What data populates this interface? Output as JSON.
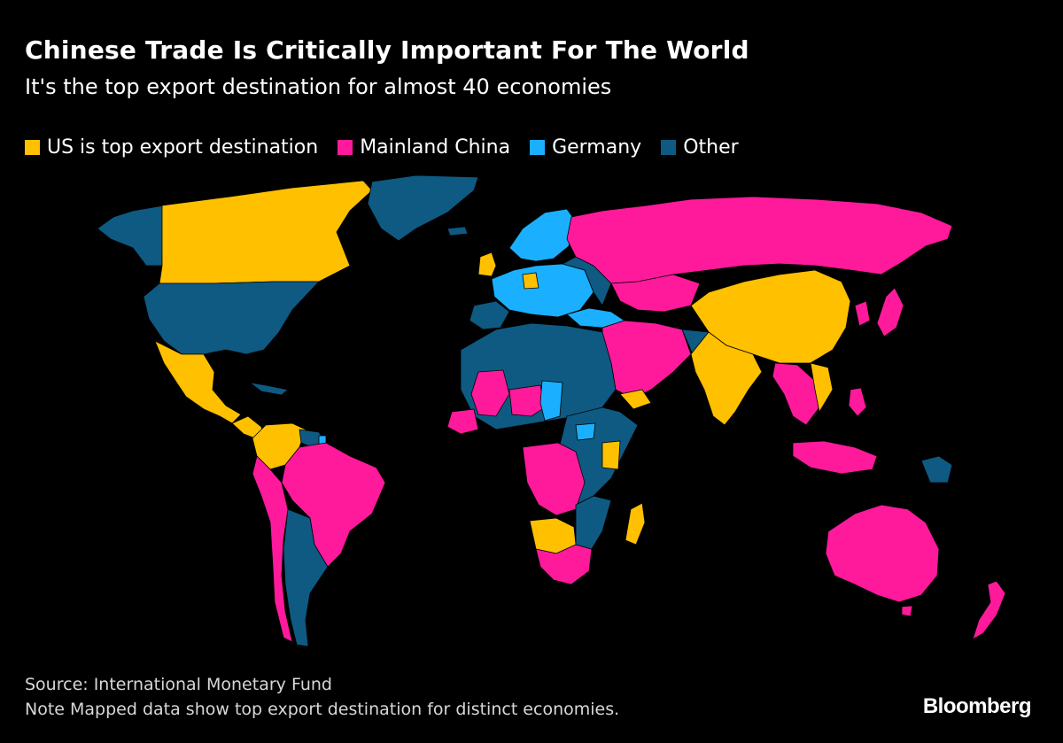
{
  "title": "Chinese Trade Is Critically Important For The World",
  "subtitle": "It's the top export destination for almost 40 economies",
  "legend": [
    {
      "label": "US is top export destination",
      "color": "#ffc000"
    },
    {
      "label": "Mainland China",
      "color": "#ff1a9c"
    },
    {
      "label": "Germany",
      "color": "#1ab0ff"
    },
    {
      "label": "Other",
      "color": "#0e5a82"
    }
  ],
  "colors": {
    "us": "#ffc000",
    "china": "#ff1a9c",
    "germany": "#1ab0ff",
    "other": "#0e5a82",
    "background": "#000000"
  },
  "source": "Source: International Monetary Fund",
  "note": "Note Mapped data show top export destination for distinct economies.",
  "brand": "Bloomberg"
}
